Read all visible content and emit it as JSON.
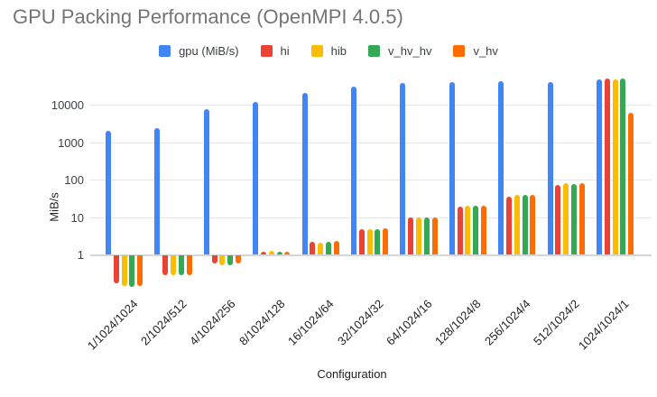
{
  "title": "GPU Packing Performance (OpenMPI 4.0.5)",
  "x_axis_title": "Configuration",
  "y_axis_title": "MiB/s",
  "colors": {
    "title_text": "#757575",
    "legend_text": "#3c4043",
    "tick_text": "#1f1f1f",
    "gridline": "#e6e6e6",
    "baseline": "#d6d6d6",
    "background": "#ffffff"
  },
  "chart_data": {
    "type": "bar",
    "title": "GPU Packing Performance (OpenMPI 4.0.5)",
    "xlabel": "Configuration",
    "ylabel": "MiB/s",
    "y_scale": "log",
    "y_ticks": [
      1,
      10,
      100,
      1000,
      10000
    ],
    "ylim": [
      0.1,
      60000
    ],
    "grid": true,
    "legend_position": "top",
    "categories": [
      "1/1024/1024",
      "2/1024/512",
      "4/1024/256",
      "8/1024/128",
      "16/1024/64",
      "32/1024/32",
      "64/1024/16",
      "128/1024/8",
      "256/1024/4",
      "512/1024/2",
      "1024/1024/1"
    ],
    "series": [
      {
        "name": "gpu (MiB/s)",
        "color": "#4285F4",
        "values": [
          2000,
          2400,
          7500,
          12000,
          21000,
          30000,
          38000,
          41000,
          42000,
          41000,
          46000
        ]
      },
      {
        "name": "hi",
        "color": "#EA4335",
        "values": [
          0.18,
          0.3,
          0.6,
          1.2,
          2.2,
          4.8,
          9.5,
          19,
          34,
          72,
          50000
        ]
      },
      {
        "name": "hib",
        "color": "#FBBC04",
        "values": [
          0.15,
          0.3,
          0.55,
          1.25,
          2.1,
          4.7,
          9.5,
          20,
          40,
          78,
          47000
        ]
      },
      {
        "name": "v_hv_hv",
        "color": "#34A853",
        "values": [
          0.14,
          0.3,
          0.55,
          1.2,
          2.2,
          4.8,
          9.5,
          20,
          40,
          77,
          51000
        ]
      },
      {
        "name": "v_hv",
        "color": "#FF6D01",
        "values": [
          0.15,
          0.3,
          0.6,
          1.2,
          2.3,
          5.0,
          10,
          20,
          40,
          78,
          6200
        ]
      }
    ]
  }
}
